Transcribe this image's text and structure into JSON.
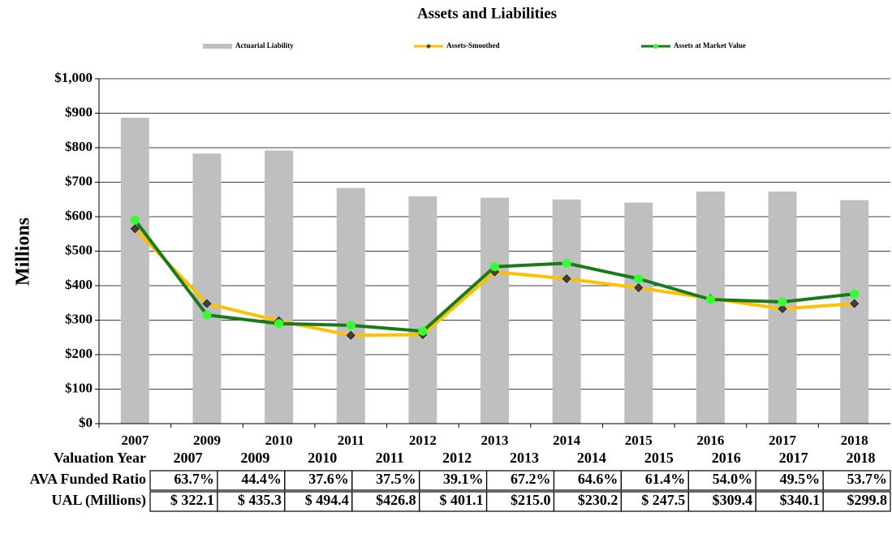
{
  "chart_data": {
    "type": "combo",
    "title": "Assets and Liabilities",
    "y_label": "Millions",
    "categories": [
      "2007",
      "2009",
      "2010",
      "2011",
      "2012",
      "2013",
      "2014",
      "2015",
      "2016",
      "2017",
      "2018"
    ],
    "series": [
      {
        "name": "Actuarial Liability",
        "type": "bar",
        "color": "#bfbfbf",
        "values": [
          887,
          783,
          792,
          683,
          659,
          655,
          650,
          641,
          673,
          673,
          648
        ]
      },
      {
        "name": "Assets-Smoothed",
        "type": "line",
        "color": "#ffc000",
        "marker": "diamond",
        "marker_color": "#404040",
        "values": [
          565,
          348,
          298,
          256,
          258,
          440,
          420,
          394,
          363,
          333,
          348
        ]
      },
      {
        "name": "Assets at Market Value",
        "type": "line",
        "color": "#1a7a1a",
        "marker": "circle",
        "marker_color": "#33ff33",
        "values": [
          590,
          315,
          290,
          285,
          268,
          455,
          465,
          420,
          360,
          353,
          376
        ]
      }
    ],
    "ylim": [
      0,
      1000
    ],
    "yticks": [
      {
        "value": 0,
        "label": "$0"
      },
      {
        "value": 100,
        "label": "$100"
      },
      {
        "value": 200,
        "label": "$200"
      },
      {
        "value": 300,
        "label": "$300"
      },
      {
        "value": 400,
        "label": "$400"
      },
      {
        "value": 500,
        "label": "$500"
      },
      {
        "value": 600,
        "label": "$600"
      },
      {
        "value": 700,
        "label": "$700"
      },
      {
        "value": 800,
        "label": "$800"
      },
      {
        "value": 900,
        "label": "$900"
      },
      {
        "value": 1000,
        "label": "$1,000"
      }
    ],
    "grid": true,
    "legend": "top"
  },
  "table": {
    "header": "Valuation Year",
    "rows": [
      {
        "label": "AVA Funded Ratio",
        "cells": [
          "63.7%",
          "44.4%",
          "37.6%",
          "37.5%",
          "39.1%",
          "67.2%",
          "64.6%",
          "61.4%",
          "54.0%",
          "49.5%",
          "53.7%"
        ]
      },
      {
        "label": "UAL (Millions)",
        "cells": [
          "$ 322.1",
          "$ 435.3",
          "$ 494.4",
          "$426.8",
          "$ 401.1",
          "$215.0",
          "$230.2",
          "$ 247.5",
          "$309.4",
          "$340.1",
          "$299.8"
        ]
      }
    ]
  }
}
